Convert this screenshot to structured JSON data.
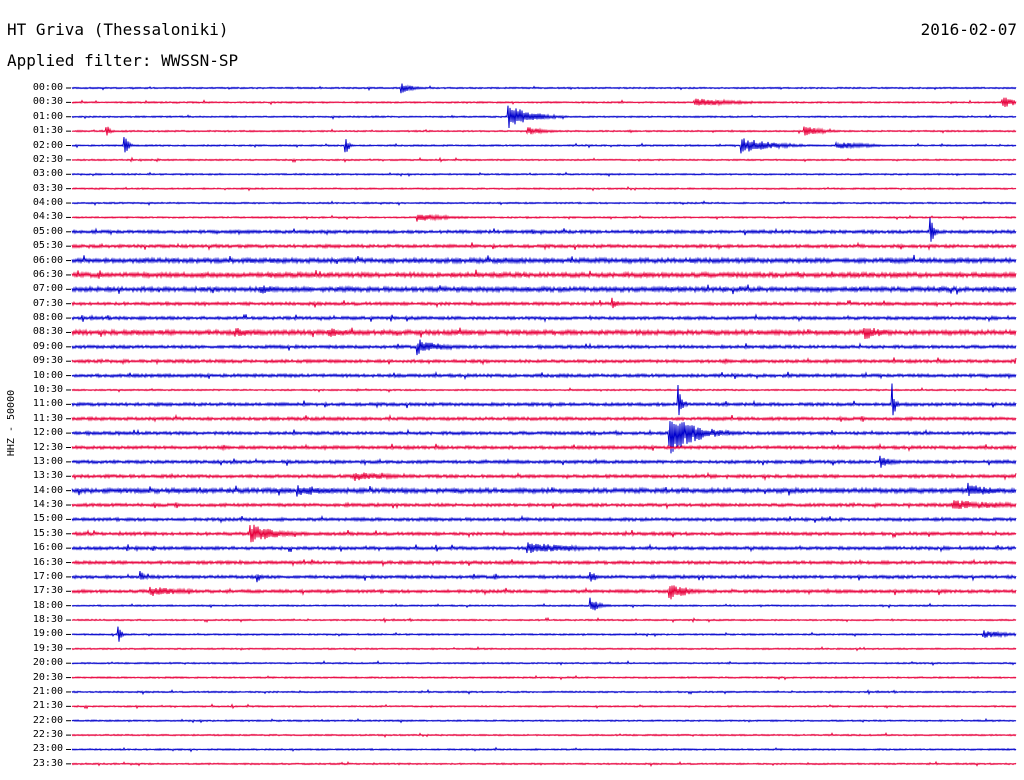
{
  "header": {
    "station": "HT Griva (Thessaloniki)",
    "date": "2016-02-07",
    "filter": "Applied filter: WWSSN-SP"
  },
  "chart_data": {
    "type": "line",
    "subtype": "helicorder",
    "ylabel": "HHZ - 50000",
    "row_labels": [
      "00:00",
      "00:30",
      "01:00",
      "01:30",
      "02:00",
      "02:30",
      "03:00",
      "03:30",
      "04:00",
      "04:30",
      "05:00",
      "05:30",
      "06:00",
      "06:30",
      "07:00",
      "07:30",
      "08:00",
      "08:30",
      "09:00",
      "09:30",
      "10:00",
      "10:30",
      "11:00",
      "11:30",
      "12:00",
      "12:30",
      "13:00",
      "13:30",
      "14:00",
      "14:30",
      "15:00",
      "15:30",
      "16:00",
      "16:30",
      "17:00",
      "17:30",
      "18:00",
      "18:30",
      "19:00",
      "19:30",
      "20:00",
      "20:30",
      "21:00",
      "21:30",
      "22:00",
      "22:30",
      "23:00",
      "23:30"
    ],
    "colors": [
      "#0000cc",
      "#e8003c"
    ],
    "noise_levels": [
      1,
      1,
      1,
      1,
      1,
      1,
      1,
      1,
      1,
      1,
      2,
      2,
      3,
      3,
      3,
      2,
      2,
      3,
      2,
      2,
      2,
      1,
      2,
      2,
      2,
      2,
      2,
      2,
      3,
      2,
      2,
      2,
      2,
      2,
      2,
      2,
      1,
      1,
      1,
      1,
      1,
      1,
      1,
      1,
      1,
      1,
      1,
      1
    ],
    "events": [
      {
        "row": 0,
        "minute": 10.5,
        "amp": 5,
        "dur": 0.4
      },
      {
        "row": 1,
        "minute": 19.8,
        "amp": 4,
        "dur": 1.5
      },
      {
        "row": 1,
        "minute": 29.6,
        "amp": 6,
        "dur": 0.4
      },
      {
        "row": 2,
        "minute": 13.9,
        "amp": 13,
        "dur": 0.7
      },
      {
        "row": 3,
        "minute": 1.1,
        "amp": 8,
        "dur": 0.1
      },
      {
        "row": 3,
        "minute": 14.5,
        "amp": 4,
        "dur": 0.6
      },
      {
        "row": 3,
        "minute": 23.3,
        "amp": 5,
        "dur": 0.6
      },
      {
        "row": 4,
        "minute": 1.7,
        "amp": 11,
        "dur": 0.1
      },
      {
        "row": 4,
        "minute": 8.7,
        "amp": 10,
        "dur": 0.1
      },
      {
        "row": 4,
        "minute": 21.3,
        "amp": 8,
        "dur": 1.0
      },
      {
        "row": 4,
        "minute": 24.3,
        "amp": 4,
        "dur": 1.0
      },
      {
        "row": 9,
        "minute": 11.0,
        "amp": 4,
        "dur": 1.0
      },
      {
        "row": 10,
        "minute": 27.3,
        "amp": 16,
        "dur": 0.1
      },
      {
        "row": 10,
        "minute": 30.1,
        "amp": 10,
        "dur": 0.1
      },
      {
        "row": 12,
        "minute": 30.1,
        "amp": 5,
        "dur": 0.6
      },
      {
        "row": 14,
        "minute": 6.0,
        "amp": 5,
        "dur": 0.6
      },
      {
        "row": 15,
        "minute": 17.2,
        "amp": 5,
        "dur": 0.2
      },
      {
        "row": 17,
        "minute": 5.2,
        "amp": 5,
        "dur": 0.8
      },
      {
        "row": 17,
        "minute": 8.2,
        "amp": 5,
        "dur": 0.8
      },
      {
        "row": 17,
        "minute": 25.2,
        "amp": 8,
        "dur": 0.6
      },
      {
        "row": 18,
        "minute": 11.0,
        "amp": 8,
        "dur": 0.8
      },
      {
        "row": 19,
        "minute": 30.0,
        "amp": 6,
        "dur": 2.0
      },
      {
        "row": 22,
        "minute": 19.3,
        "amp": 14,
        "dur": 0.1
      },
      {
        "row": 22,
        "minute": 26.1,
        "amp": 16,
        "dur": 0.1
      },
      {
        "row": 24,
        "minute": 19.0,
        "amp": 22,
        "dur": 0.8
      },
      {
        "row": 26,
        "minute": 25.7,
        "amp": 6,
        "dur": 0.4
      },
      {
        "row": 27,
        "minute": 9.0,
        "amp": 5,
        "dur": 1.2
      },
      {
        "row": 28,
        "minute": 7.2,
        "amp": 6,
        "dur": 1.2
      },
      {
        "row": 28,
        "minute": 28.5,
        "amp": 8,
        "dur": 0.7
      },
      {
        "row": 29,
        "minute": 28.0,
        "amp": 5,
        "dur": 2.0
      },
      {
        "row": 31,
        "minute": 5.7,
        "amp": 10,
        "dur": 0.8
      },
      {
        "row": 31,
        "minute": 30.4,
        "amp": 7,
        "dur": 1.2
      },
      {
        "row": 32,
        "minute": 14.5,
        "amp": 6,
        "dur": 1.5
      },
      {
        "row": 34,
        "minute": 2.2,
        "amp": 6,
        "dur": 0.1
      },
      {
        "row": 34,
        "minute": 5.9,
        "amp": 6,
        "dur": 0.1
      },
      {
        "row": 34,
        "minute": 16.5,
        "amp": 6,
        "dur": 0.2
      },
      {
        "row": 35,
        "minute": 2.5,
        "amp": 5,
        "dur": 1.2
      },
      {
        "row": 35,
        "minute": 19.0,
        "amp": 9,
        "dur": 0.6
      },
      {
        "row": 36,
        "minute": 16.5,
        "amp": 7,
        "dur": 0.3
      },
      {
        "row": 38,
        "minute": 1.5,
        "amp": 7,
        "dur": 0.1
      },
      {
        "row": 38,
        "minute": 29.0,
        "amp": 4,
        "dur": 0.8
      }
    ]
  }
}
